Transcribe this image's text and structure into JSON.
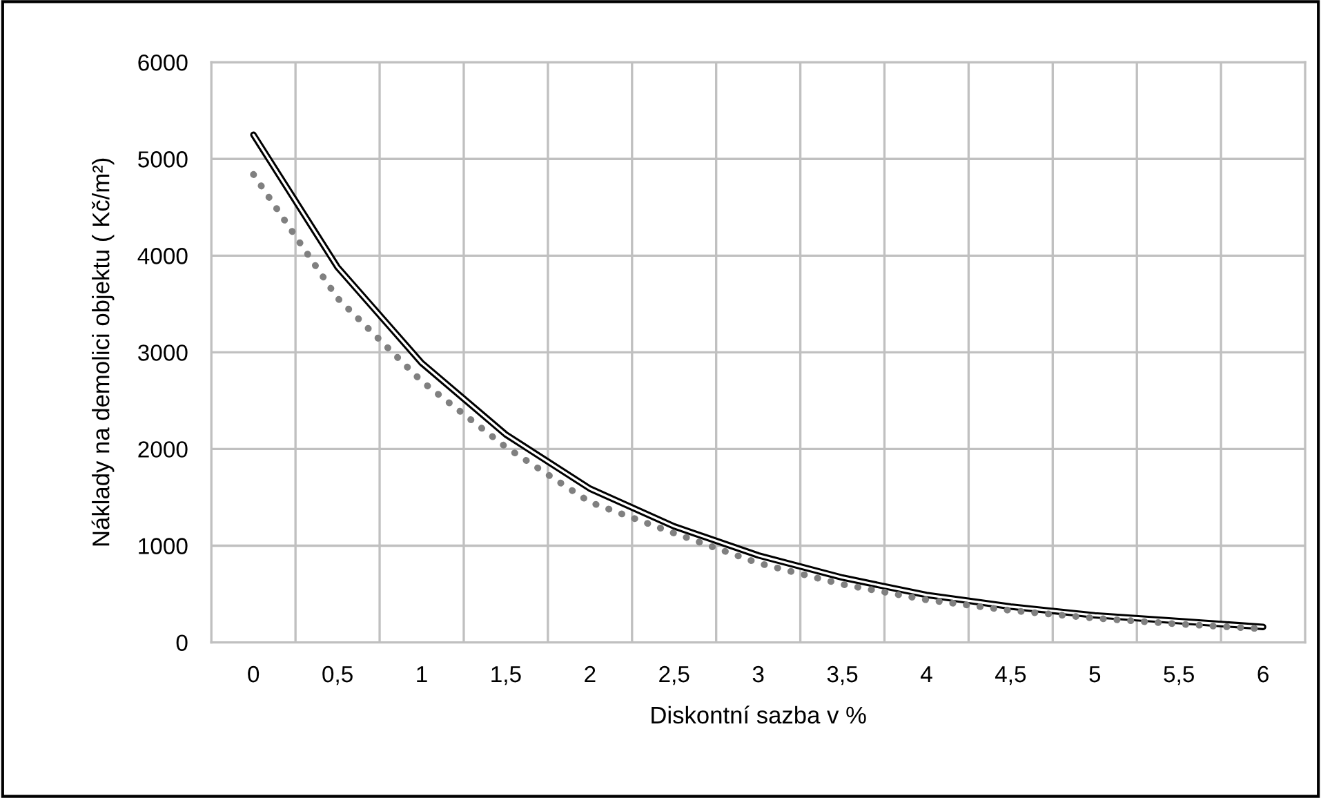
{
  "chart_data": {
    "type": "line",
    "xlabel": "Diskontní sazba v %",
    "ylabel": "Náklady na demolici objektu ( Kč/m²)",
    "categories": [
      "0",
      "0,5",
      "1",
      "1,5",
      "2",
      "2,5",
      "3",
      "3,5",
      "4",
      "4,5",
      "5",
      "5,5",
      "6"
    ],
    "series": [
      {
        "color": "#000000",
        "line_style": "solid",
        "values": [
          5250,
          3880,
          2890,
          2150,
          1590,
          1200,
          900,
          670,
          490,
          370,
          280,
          220,
          160
        ]
      },
      {
        "color": "#808080",
        "line_style": "dotted",
        "values": [
          4840,
          3560,
          2700,
          2020,
          1450,
          1130,
          820,
          600,
          440,
          330,
          250,
          190,
          140
        ]
      }
    ],
    "ylim": [
      0,
      6000
    ],
    "yticks": [
      0,
      1000,
      2000,
      3000,
      4000,
      5000,
      6000
    ],
    "grid": true,
    "marker": "none"
  }
}
